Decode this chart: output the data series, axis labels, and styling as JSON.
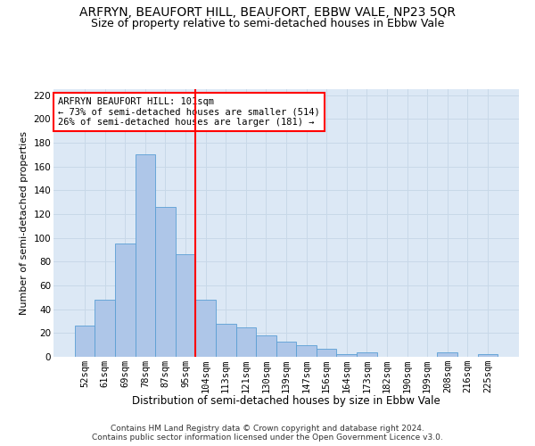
{
  "title": "ARFRYN, BEAUFORT HILL, BEAUFORT, EBBW VALE, NP23 5QR",
  "subtitle": "Size of property relative to semi-detached houses in Ebbw Vale",
  "xlabel": "Distribution of semi-detached houses by size in Ebbw Vale",
  "ylabel": "Number of semi-detached properties",
  "categories": [
    "52sqm",
    "61sqm",
    "69sqm",
    "78sqm",
    "87sqm",
    "95sqm",
    "104sqm",
    "113sqm",
    "121sqm",
    "130sqm",
    "139sqm",
    "147sqm",
    "156sqm",
    "164sqm",
    "173sqm",
    "182sqm",
    "190sqm",
    "199sqm",
    "208sqm",
    "216sqm",
    "225sqm"
  ],
  "values": [
    26,
    48,
    95,
    170,
    126,
    86,
    48,
    28,
    25,
    18,
    13,
    10,
    7,
    2,
    4,
    0,
    0,
    0,
    4,
    0,
    2
  ],
  "bar_color": "#aec6e8",
  "bar_edge_color": "#5a9fd4",
  "grid_color": "#c8d8e8",
  "background_color": "#dce8f5",
  "annotation_text": "ARFRYN BEAUFORT HILL: 101sqm\n← 73% of semi-detached houses are smaller (514)\n26% of semi-detached houses are larger (181) →",
  "annotation_box_color": "white",
  "annotation_box_edge": "red",
  "vline_x": 5.5,
  "vline_color": "red",
  "ylim": [
    0,
    225
  ],
  "yticks": [
    0,
    20,
    40,
    60,
    80,
    100,
    120,
    140,
    160,
    180,
    200,
    220
  ],
  "footer": "Contains HM Land Registry data © Crown copyright and database right 2024.\nContains public sector information licensed under the Open Government Licence v3.0.",
  "title_fontsize": 10,
  "subtitle_fontsize": 9,
  "xlabel_fontsize": 8.5,
  "ylabel_fontsize": 8,
  "tick_fontsize": 7.5,
  "annotation_fontsize": 7.5,
  "footer_fontsize": 6.5
}
